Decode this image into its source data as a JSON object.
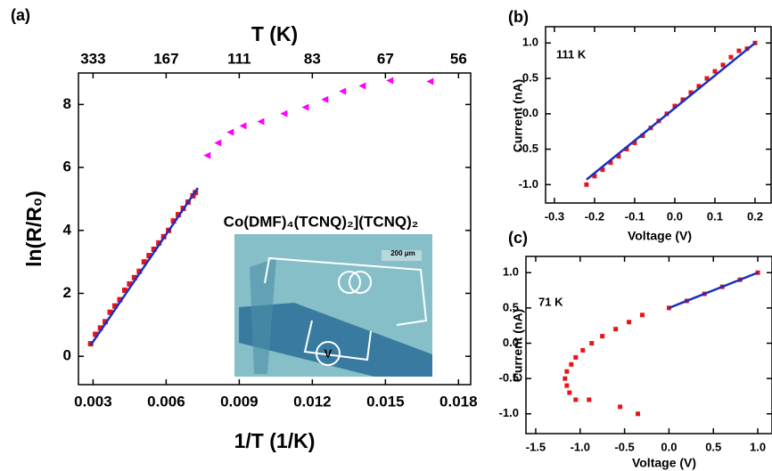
{
  "chart_data": [
    {
      "type": "scatter",
      "label": "(a)",
      "xlabel": "1/T (1/K)",
      "ylabel": "ln(R/R₀)",
      "x2label": "T (K)",
      "xlim": [
        0.0024,
        0.0185
      ],
      "ylim": [
        -0.9,
        9.0
      ],
      "xticks": [
        0.003,
        0.006,
        0.009,
        0.012,
        0.015,
        0.018
      ],
      "x2ticks": [
        {
          "value": 0.003,
          "label": "333"
        },
        {
          "value": 0.006,
          "label": "167"
        },
        {
          "value": 0.009,
          "label": "111"
        },
        {
          "value": 0.012,
          "label": "83"
        },
        {
          "value": 0.015,
          "label": "67"
        },
        {
          "value": 0.018,
          "label": "56"
        }
      ],
      "yticks": [
        0,
        2,
        4,
        6,
        8
      ],
      "annotations": [
        "Co(DMF)₄(TCNQ)₂](TCNQ)₂",
        "200 μm",
        "V"
      ],
      "series": [
        {
          "marker": "square",
          "color": "#e8141b",
          "x": [
            0.0029,
            0.0031,
            0.0033,
            0.0035,
            0.0037,
            0.0039,
            0.0041,
            0.0043,
            0.0045,
            0.0047,
            0.0049,
            0.0051,
            0.0053,
            0.0055,
            0.0057,
            0.0059,
            0.0061,
            0.0063,
            0.0065,
            0.0067,
            0.0069,
            0.0071,
            0.0072
          ],
          "values": [
            0.4,
            0.7,
            0.9,
            1.1,
            1.4,
            1.6,
            1.8,
            2.1,
            2.3,
            2.5,
            2.7,
            3.0,
            3.2,
            3.4,
            3.6,
            3.8,
            4.0,
            4.3,
            4.5,
            4.7,
            4.9,
            5.1,
            5.2
          ]
        },
        {
          "marker": "line",
          "color": "#1a2fbf",
          "x": [
            0.0029,
            0.0073
          ],
          "values": [
            0.35,
            5.35
          ]
        },
        {
          "marker": "triangle",
          "color": "#ff00ff",
          "x": [
            0.00768,
            0.00812,
            0.00863,
            0.00915,
            0.00988,
            0.01083,
            0.01171,
            0.01251,
            0.01324,
            0.01405,
            0.01518,
            0.01683
          ],
          "values": [
            6.38,
            6.78,
            7.12,
            7.32,
            7.46,
            7.71,
            7.91,
            8.16,
            8.42,
            8.59,
            8.76,
            8.73
          ]
        }
      ]
    },
    {
      "type": "scatter",
      "label": "(b)",
      "xlabel": "Voltage (V)",
      "ylabel": "Current (nA)",
      "xlim": [
        -0.322,
        0.24
      ],
      "ylim": [
        -1.26,
        1.23
      ],
      "xticks": [
        -0.3,
        -0.2,
        -0.1,
        {
          "value": 0,
          "label": "0.0"
        },
        0.1,
        0.2
      ],
      "yticks": [
        {
          "value": -1,
          "label": "-1.0"
        },
        -0.5,
        {
          "value": 0,
          "label": "0.0"
        },
        0.5,
        {
          "value": 1,
          "label": "1.0"
        }
      ],
      "annotations": [
        "111 K"
      ],
      "series": [
        {
          "marker": "square",
          "color": "#e8141b",
          "x": [
            -0.22,
            -0.2,
            -0.18,
            -0.16,
            -0.14,
            -0.12,
            -0.1,
            -0.08,
            -0.06,
            -0.04,
            -0.02,
            0.0,
            0.02,
            0.04,
            0.06,
            0.08,
            0.1,
            0.12,
            0.14,
            0.16,
            0.18,
            0.2
          ],
          "values": [
            -1.0,
            -0.88,
            -0.79,
            -0.69,
            -0.6,
            -0.5,
            -0.41,
            -0.31,
            -0.2,
            -0.1,
            0.0,
            0.11,
            0.2,
            0.3,
            0.39,
            0.5,
            0.6,
            0.69,
            0.8,
            0.89,
            0.92,
            1.0
          ]
        },
        {
          "marker": "line",
          "color": "#1a2fbf",
          "x": [
            -0.22,
            0.2
          ],
          "values": [
            -0.93,
            1.0
          ]
        }
      ]
    },
    {
      "type": "scatter",
      "label": "(c)",
      "xlabel": "Voltage (V)",
      "ylabel": "Current (nA)",
      "xlim": [
        -1.61,
        1.16
      ],
      "ylim": [
        -1.28,
        1.23
      ],
      "xticks": [
        -1.5,
        {
          "value": -1,
          "label": "-1.0"
        },
        -0.5,
        {
          "value": 0,
          "label": "0.0"
        },
        0.5,
        {
          "value": 1,
          "label": "1.0"
        }
      ],
      "yticks": [
        {
          "value": -1,
          "label": "-1.0"
        },
        -0.5,
        {
          "value": 0,
          "label": "0.0"
        },
        0.5,
        {
          "value": 1,
          "label": "1.0"
        }
      ],
      "annotations": [
        "71 K"
      ],
      "series": [
        {
          "marker": "square",
          "color": "#e8141b",
          "x": [
            0.0,
            0.2,
            0.4,
            0.6,
            0.8,
            1.0,
            -0.3,
            -0.45,
            -0.6,
            -0.75,
            -0.87,
            -0.97,
            -1.05,
            -1.1,
            -1.15,
            -1.17,
            -1.15,
            -1.12,
            -1.05,
            -0.9,
            -0.55,
            -0.35
          ],
          "values": [
            0.5,
            0.6,
            0.7,
            0.8,
            0.9,
            1.0,
            0.4,
            0.3,
            0.2,
            0.1,
            0.0,
            -0.1,
            -0.2,
            -0.3,
            -0.4,
            -0.5,
            -0.6,
            -0.7,
            -0.8,
            -0.8,
            -0.9,
            -1.0
          ]
        },
        {
          "marker": "line",
          "color": "#1a2fbf",
          "x": [
            0.0,
            1.0
          ],
          "values": [
            0.5,
            1.0
          ]
        }
      ]
    }
  ]
}
